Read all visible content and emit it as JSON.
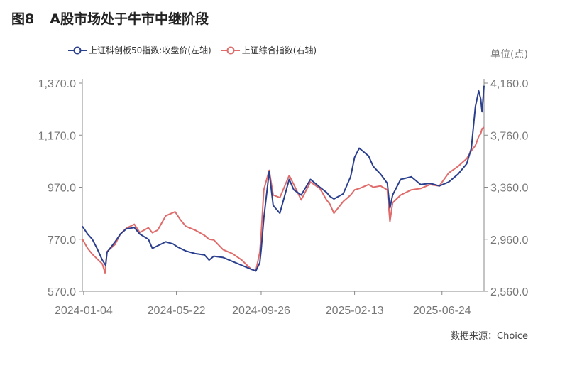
{
  "title": {
    "number": "图8",
    "text": "A股市场处于牛市中继阶段"
  },
  "unit_label": "单位(点)",
  "source": "数据来源：Choice",
  "colors": {
    "series1": "#2b3f8f",
    "series2": "#e06b6b",
    "axis": "#888888",
    "tick": "#777777"
  },
  "chart_data": {
    "type": "line",
    "x_ticks": [
      "2024-01-04",
      "2024-05-22",
      "2024-09-26",
      "2025-02-13",
      "2025-06-24"
    ],
    "left_axis": {
      "ticks": [
        "570.0",
        "770.0",
        "970.0",
        "1,170.0",
        "1,370.0"
      ],
      "ylim": [
        570,
        1370
      ]
    },
    "right_axis": {
      "ticks": [
        "2,560.0",
        "2,960.0",
        "3,360.0",
        "3,760.0",
        "4,160.0"
      ],
      "ylim": [
        2560,
        4160
      ]
    },
    "x_range": [
      "2024-01-02",
      "2025-08-26"
    ],
    "series": [
      {
        "name": "上证科创板50指数:收盘价(左轴)",
        "axis": "left",
        "points": [
          [
            "2024-01-02",
            820
          ],
          [
            "2024-01-10",
            790
          ],
          [
            "2024-01-17",
            770
          ],
          [
            "2024-01-24",
            735
          ],
          [
            "2024-02-01",
            690
          ],
          [
            "2024-02-06",
            670
          ],
          [
            "2024-02-08",
            720
          ],
          [
            "2024-02-20",
            760
          ],
          [
            "2024-02-28",
            790
          ],
          [
            "2024-03-08",
            810
          ],
          [
            "2024-03-20",
            815
          ],
          [
            "2024-03-28",
            790
          ],
          [
            "2024-04-10",
            770
          ],
          [
            "2024-04-16",
            735
          ],
          [
            "2024-04-24",
            745
          ],
          [
            "2024-05-06",
            760
          ],
          [
            "2024-05-17",
            752
          ],
          [
            "2024-05-24",
            740
          ],
          [
            "2024-06-05",
            725
          ],
          [
            "2024-06-19",
            715
          ],
          [
            "2024-07-03",
            710
          ],
          [
            "2024-07-10",
            690
          ],
          [
            "2024-07-17",
            705
          ],
          [
            "2024-07-31",
            700
          ],
          [
            "2024-08-14",
            685
          ],
          [
            "2024-08-28",
            670
          ],
          [
            "2024-09-11",
            655
          ],
          [
            "2024-09-18",
            648
          ],
          [
            "2024-09-24",
            680
          ],
          [
            "2024-09-26",
            730
          ],
          [
            "2024-09-30",
            850
          ],
          [
            "2024-10-08",
            1030
          ],
          [
            "2024-10-14",
            900
          ],
          [
            "2024-10-24",
            870
          ],
          [
            "2024-11-07",
            1000
          ],
          [
            "2024-11-14",
            960
          ],
          [
            "2024-11-25",
            940
          ],
          [
            "2024-12-09",
            1000
          ],
          [
            "2024-12-23",
            970
          ],
          [
            "2025-01-02",
            950
          ],
          [
            "2025-01-07",
            935
          ],
          [
            "2025-01-13",
            925
          ],
          [
            "2025-01-27",
            945
          ],
          [
            "2025-02-07",
            1010
          ],
          [
            "2025-02-13",
            1085
          ],
          [
            "2025-02-20",
            1120
          ],
          [
            "2025-03-06",
            1090
          ],
          [
            "2025-03-13",
            1050
          ],
          [
            "2025-03-24",
            1020
          ],
          [
            "2025-04-03",
            985
          ],
          [
            "2025-04-07",
            890
          ],
          [
            "2025-04-11",
            940
          ],
          [
            "2025-04-23",
            1000
          ],
          [
            "2025-05-09",
            1010
          ],
          [
            "2025-05-23",
            980
          ],
          [
            "2025-06-06",
            985
          ],
          [
            "2025-06-20",
            975
          ],
          [
            "2025-07-04",
            990
          ],
          [
            "2025-07-18",
            1020
          ],
          [
            "2025-07-31",
            1060
          ],
          [
            "2025-08-07",
            1120
          ],
          [
            "2025-08-13",
            1280
          ],
          [
            "2025-08-18",
            1340
          ],
          [
            "2025-08-21",
            1310
          ],
          [
            "2025-08-23",
            1260
          ],
          [
            "2025-08-26",
            1360
          ]
        ]
      },
      {
        "name": "上证综合指数(右轴)",
        "axis": "right",
        "points": [
          [
            "2024-01-02",
            2962
          ],
          [
            "2024-01-10",
            2890
          ],
          [
            "2024-01-17",
            2845
          ],
          [
            "2024-01-24",
            2810
          ],
          [
            "2024-02-01",
            2770
          ],
          [
            "2024-02-05",
            2702
          ],
          [
            "2024-02-08",
            2865
          ],
          [
            "2024-02-20",
            2920
          ],
          [
            "2024-02-28",
            3000
          ],
          [
            "2024-03-08",
            3045
          ],
          [
            "2024-03-20",
            3075
          ],
          [
            "2024-03-28",
            3012
          ],
          [
            "2024-04-10",
            3048
          ],
          [
            "2024-04-16",
            3010
          ],
          [
            "2024-04-24",
            3030
          ],
          [
            "2024-05-06",
            3140
          ],
          [
            "2024-05-20",
            3171
          ],
          [
            "2024-05-28",
            3110
          ],
          [
            "2024-06-05",
            3060
          ],
          [
            "2024-06-19",
            3030
          ],
          [
            "2024-07-03",
            2990
          ],
          [
            "2024-07-10",
            2960
          ],
          [
            "2024-07-17",
            2955
          ],
          [
            "2024-07-31",
            2880
          ],
          [
            "2024-08-14",
            2850
          ],
          [
            "2024-08-28",
            2800
          ],
          [
            "2024-09-11",
            2730
          ],
          [
            "2024-09-18",
            2717
          ],
          [
            "2024-09-24",
            2862
          ],
          [
            "2024-09-26",
            3000
          ],
          [
            "2024-09-30",
            3340
          ],
          [
            "2024-10-08",
            3490
          ],
          [
            "2024-10-14",
            3300
          ],
          [
            "2024-10-24",
            3280
          ],
          [
            "2024-11-07",
            3450
          ],
          [
            "2024-11-14",
            3380
          ],
          [
            "2024-11-25",
            3263
          ],
          [
            "2024-12-09",
            3400
          ],
          [
            "2024-12-23",
            3350
          ],
          [
            "2025-01-02",
            3262
          ],
          [
            "2025-01-07",
            3230
          ],
          [
            "2025-01-13",
            3160
          ],
          [
            "2025-01-27",
            3250
          ],
          [
            "2025-02-07",
            3300
          ],
          [
            "2025-02-13",
            3340
          ],
          [
            "2025-02-20",
            3350
          ],
          [
            "2025-03-06",
            3380
          ],
          [
            "2025-03-13",
            3360
          ],
          [
            "2025-03-24",
            3370
          ],
          [
            "2025-04-03",
            3340
          ],
          [
            "2025-04-07",
            3096
          ],
          [
            "2025-04-11",
            3240
          ],
          [
            "2025-04-23",
            3300
          ],
          [
            "2025-05-09",
            3340
          ],
          [
            "2025-05-23",
            3350
          ],
          [
            "2025-06-06",
            3380
          ],
          [
            "2025-06-20",
            3370
          ],
          [
            "2025-07-04",
            3470
          ],
          [
            "2025-07-18",
            3520
          ],
          [
            "2025-07-31",
            3580
          ],
          [
            "2025-08-07",
            3640
          ],
          [
            "2025-08-13",
            3680
          ],
          [
            "2025-08-18",
            3750
          ],
          [
            "2025-08-21",
            3770
          ],
          [
            "2025-08-23",
            3810
          ],
          [
            "2025-08-26",
            3820
          ]
        ]
      }
    ]
  }
}
